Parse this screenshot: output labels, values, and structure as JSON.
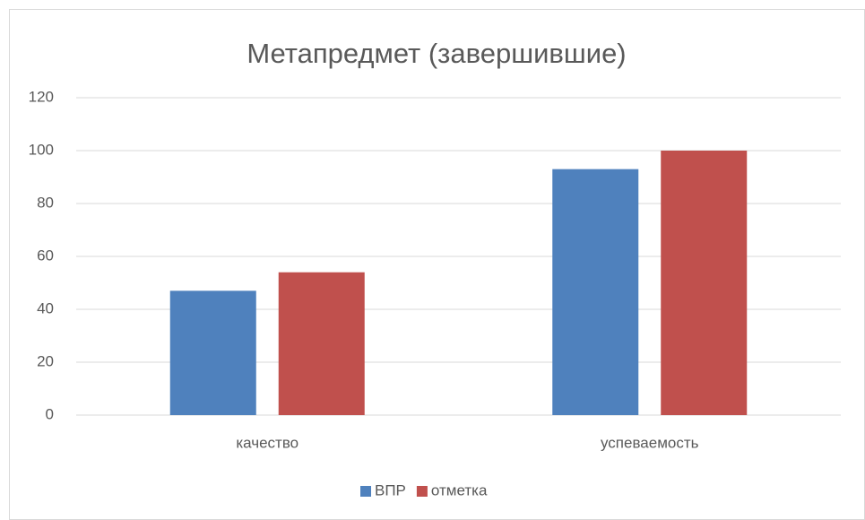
{
  "chart_data": {
    "type": "bar",
    "title": "Метапредмет (завершившие)",
    "categories": [
      "качество",
      "успеваемость"
    ],
    "series": [
      {
        "name": "ВПР",
        "color": "#4f81bd",
        "values": [
          47,
          93
        ]
      },
      {
        "name": "отметка",
        "color": "#c0504d",
        "values": [
          54,
          100
        ]
      }
    ],
    "ylim": [
      0,
      120
    ],
    "yticks": [
      0,
      20,
      40,
      60,
      80,
      100,
      120
    ],
    "grid": true,
    "legend": "bottom"
  }
}
